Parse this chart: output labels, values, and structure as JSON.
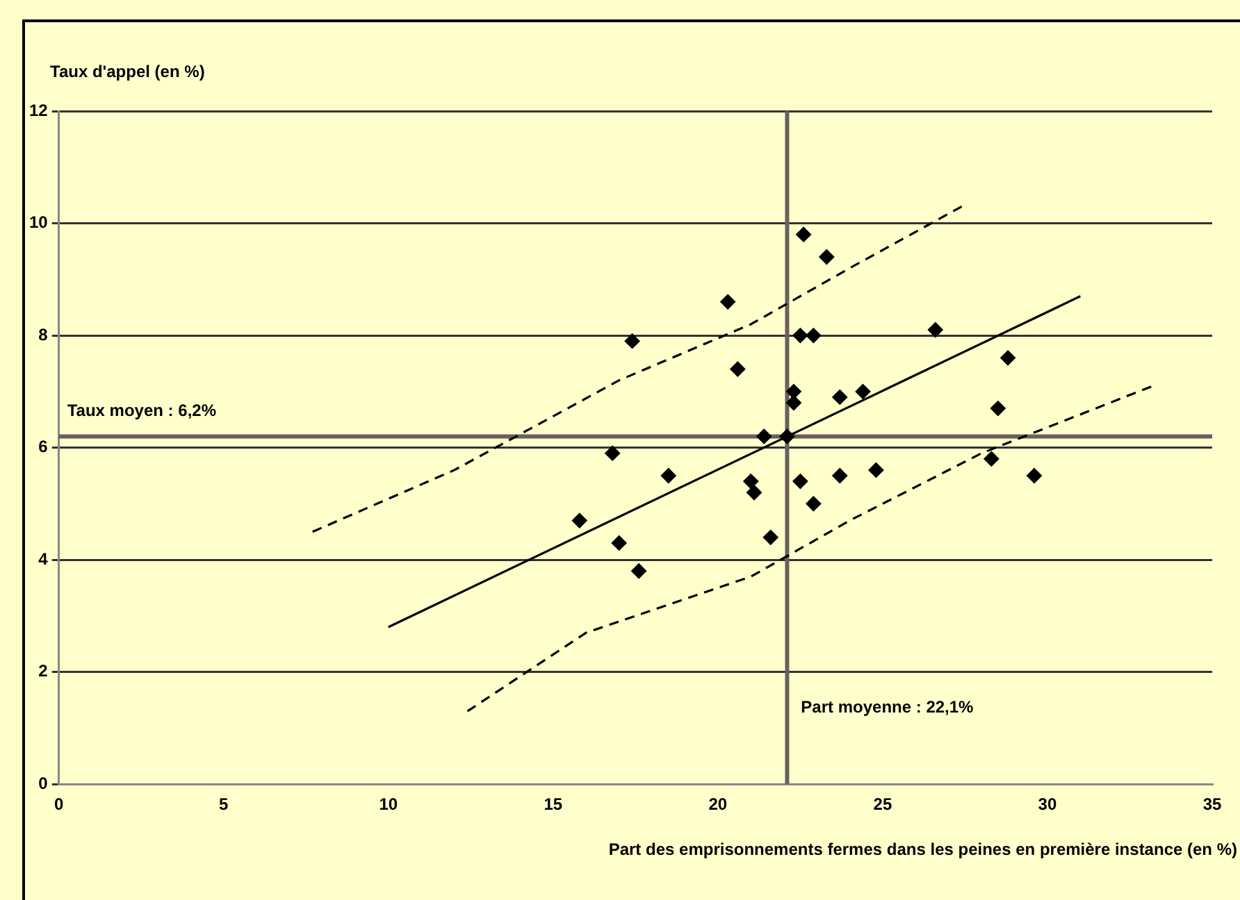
{
  "chart_data": {
    "type": "scatter",
    "ylabel": "Taux d'appel (en %)",
    "xlabel": "Part des emprisonnements fermes dans les peines en première instance (en %)",
    "xlim": [
      0,
      35
    ],
    "xticks": [
      0,
      5,
      10,
      15,
      20,
      25,
      30,
      35
    ],
    "ylim": [
      0,
      12
    ],
    "yticks": [
      0,
      2,
      4,
      6,
      8,
      10,
      12
    ],
    "grid": "y",
    "legend": false,
    "series": [
      {
        "marker": "diamond",
        "color": "#000000",
        "x": [
          15.8,
          16.8,
          17.0,
          17.4,
          17.6,
          18.5,
          20.3,
          20.6,
          21.0,
          21.1,
          21.4,
          21.6,
          22.1,
          22.3,
          22.3,
          22.6,
          22.5,
          22.5,
          22.9,
          22.9,
          23.3,
          23.7,
          23.7,
          24.4,
          24.8,
          26.6,
          28.3,
          28.5,
          28.8,
          29.6
        ],
        "values": [
          4.7,
          5.9,
          4.3,
          7.9,
          3.8,
          5.5,
          8.6,
          7.4,
          5.4,
          5.2,
          6.2,
          4.4,
          6.2,
          7.0,
          6.8,
          9.8,
          8.0,
          5.4,
          5.0,
          8.0,
          9.4,
          6.9,
          5.5,
          7.0,
          5.6,
          8.1,
          5.8,
          6.7,
          7.6,
          5.5
        ]
      },
      {
        "type": "line",
        "marker": "none",
        "line_style": "solid",
        "color": "#000000",
        "x": [
          10.0,
          31.0
        ],
        "values": [
          2.8,
          8.7
        ]
      },
      {
        "type": "line",
        "marker": "none",
        "line_style": "dashed",
        "color": "#000000",
        "x": [
          7.7,
          12.0,
          17.0,
          21.0,
          24.0,
          27.4
        ],
        "values": [
          4.5,
          5.6,
          7.2,
          8.2,
          9.2,
          10.3
        ]
      },
      {
        "type": "line",
        "marker": "none",
        "line_style": "dashed",
        "color": "#000000",
        "x": [
          12.4,
          16.0,
          21.0,
          24.0,
          28.0,
          33.2
        ],
        "values": [
          1.3,
          2.7,
          3.7,
          4.7,
          5.9,
          7.1
        ]
      }
    ],
    "ref_lines": [
      {
        "axis": "y",
        "value": 6.2,
        "label": "Taux moyen : 6,2%",
        "color": "#6b5f5f"
      },
      {
        "axis": "x",
        "value": 22.1,
        "label": "Part moyenne : 22,1%",
        "color": "#6b5f5f"
      }
    ]
  }
}
